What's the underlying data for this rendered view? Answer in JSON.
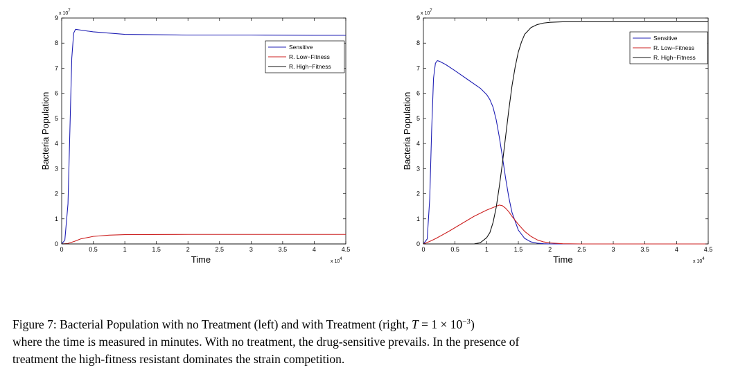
{
  "chart_data": [
    {
      "type": "line",
      "panel": "left",
      "xlabel": "Time",
      "ylabel": "Bacteria Population",
      "xlim": [
        0,
        4.5
      ],
      "ylim": [
        0,
        9
      ],
      "x_ticks": [
        "0",
        "0.5",
        "1",
        "1.5",
        "2",
        "2.5",
        "3",
        "3.5",
        "4",
        "4.5"
      ],
      "y_ticks": [
        "0",
        "1",
        "2",
        "3",
        "4",
        "5",
        "6",
        "7",
        "8",
        "9"
      ],
      "x_multiplier": "x 10",
      "x_multiplier_exp": "4",
      "y_multiplier": "x 10",
      "y_multiplier_exp": "7",
      "legend_position": "top-right",
      "series": [
        {
          "name": "Sensitive",
          "color": "#1f1fb4",
          "x": [
            0,
            0.05,
            0.1,
            0.13,
            0.16,
            0.19,
            0.22,
            0.3,
            0.5,
            1.0,
            2.0,
            3.0,
            4.0,
            4.5
          ],
          "y": [
            0,
            0.15,
            1.6,
            4.5,
            7.4,
            8.4,
            8.55,
            8.52,
            8.45,
            8.35,
            8.32,
            8.32,
            8.31,
            8.31
          ]
        },
        {
          "name": "R. Low−Fitness",
          "color": "#cc2020",
          "x": [
            0,
            0.1,
            0.2,
            0.3,
            0.5,
            0.75,
            1.0,
            2.0,
            3.0,
            4.5
          ],
          "y": [
            0,
            0.02,
            0.1,
            0.2,
            0.3,
            0.35,
            0.37,
            0.38,
            0.38,
            0.38
          ]
        },
        {
          "name": "R. High−Fitness",
          "color": "#111111",
          "x": [
            0,
            1.0,
            2.0,
            3.0,
            4.0,
            4.5
          ],
          "y": [
            0,
            0,
            0,
            0,
            0,
            0
          ]
        }
      ]
    },
    {
      "type": "line",
      "panel": "right",
      "xlabel": "Time",
      "ylabel": "Bacteria Population",
      "xlim": [
        0,
        4.5
      ],
      "ylim": [
        0,
        9
      ],
      "x_ticks": [
        "0",
        "0.5",
        "1",
        "1.5",
        "2",
        "2.5",
        "3",
        "3.5",
        "4",
        "4.5"
      ],
      "y_ticks": [
        "0",
        "1",
        "2",
        "3",
        "4",
        "5",
        "6",
        "7",
        "8",
        "9"
      ],
      "x_multiplier": "x 10",
      "x_multiplier_exp": "4",
      "y_multiplier": "x 10",
      "y_multiplier_exp": "7",
      "legend_position": "top-right",
      "series": [
        {
          "name": "Sensitive",
          "color": "#1f1fb4",
          "x": [
            0,
            0.06,
            0.1,
            0.13,
            0.16,
            0.19,
            0.22,
            0.25,
            0.35,
            0.5,
            0.7,
            0.9,
            1.0,
            1.05,
            1.1,
            1.15,
            1.2,
            1.25,
            1.3,
            1.35,
            1.4,
            1.5,
            1.6,
            1.7,
            1.8,
            1.9,
            2.0,
            2.5,
            4.5
          ],
          "y": [
            0,
            0.2,
            1.8,
            4.5,
            6.6,
            7.2,
            7.3,
            7.28,
            7.15,
            6.9,
            6.55,
            6.2,
            5.95,
            5.75,
            5.45,
            4.95,
            4.25,
            3.45,
            2.6,
            1.85,
            1.25,
            0.55,
            0.22,
            0.08,
            0.03,
            0.01,
            0,
            0,
            0
          ]
        },
        {
          "name": "R. Low−Fitness",
          "color": "#cc2020",
          "x": [
            0,
            0.1,
            0.2,
            0.4,
            0.6,
            0.8,
            1.0,
            1.1,
            1.15,
            1.2,
            1.25,
            1.3,
            1.35,
            1.4,
            1.5,
            1.6,
            1.7,
            1.8,
            1.9,
            2.0,
            2.2,
            2.5,
            3.0,
            4.5
          ],
          "y": [
            0,
            0.1,
            0.22,
            0.5,
            0.8,
            1.1,
            1.35,
            1.45,
            1.5,
            1.55,
            1.52,
            1.42,
            1.28,
            1.1,
            0.78,
            0.5,
            0.3,
            0.16,
            0.08,
            0.04,
            0.01,
            0,
            0,
            0
          ]
        },
        {
          "name": "R. High−Fitness",
          "color": "#111111",
          "x": [
            0,
            0.8,
            0.9,
            1.0,
            1.05,
            1.1,
            1.15,
            1.2,
            1.25,
            1.3,
            1.35,
            1.4,
            1.45,
            1.5,
            1.55,
            1.6,
            1.7,
            1.8,
            1.9,
            2.0,
            2.1,
            2.2,
            2.5,
            3.0,
            4.5
          ],
          "y": [
            0,
            0,
            0.05,
            0.25,
            0.45,
            0.85,
            1.45,
            2.3,
            3.25,
            4.3,
            5.35,
            6.3,
            7.05,
            7.65,
            8.05,
            8.35,
            8.62,
            8.74,
            8.8,
            8.83,
            8.84,
            8.85,
            8.85,
            8.85,
            8.85
          ]
        }
      ]
    }
  ],
  "caption": {
    "label": "Figure 7:",
    "text_main": "Bacterial Population with no Treatment (left) and with Treatment (right,",
    "math_var": "T",
    "math_eq": "= 1 × 10",
    "math_exp": "−3",
    "text_close": ")",
    "line2": "where the time is measured in minutes. With no treatment, the drug-sensitive prevails. In the presence of",
    "line3": "treatment the high-fitness resistant dominates the strain competition."
  }
}
